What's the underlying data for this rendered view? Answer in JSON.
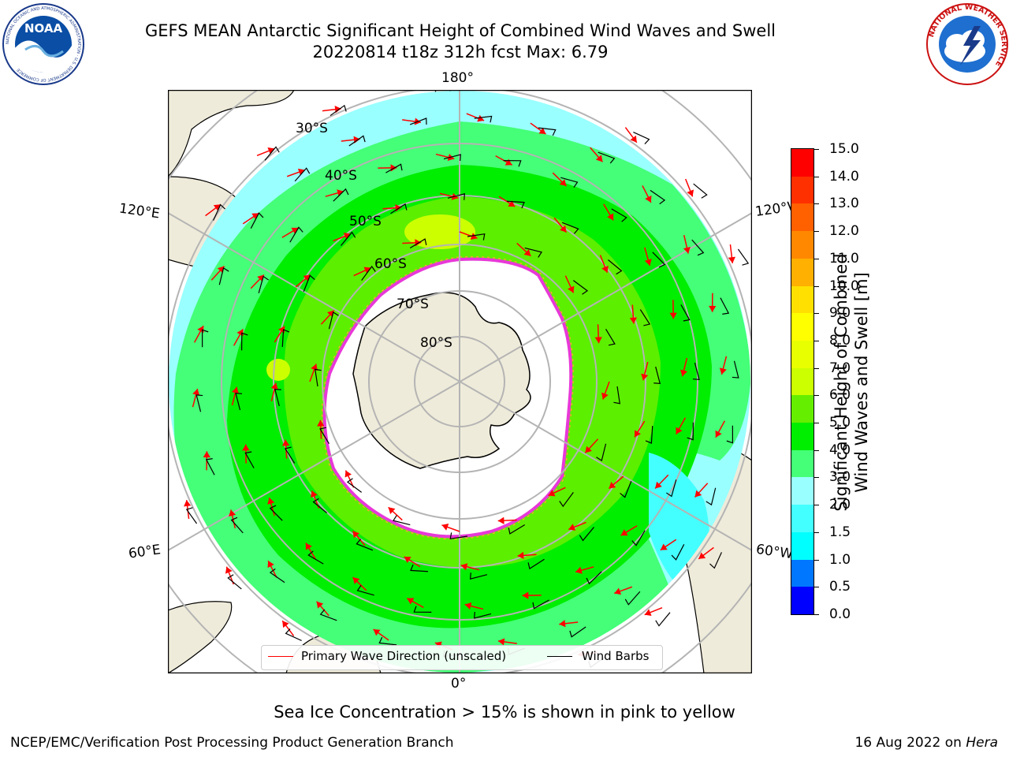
{
  "header": {
    "title_line1": "GEFS MEAN Antarctic Significant Height of Combined Wind Waves and Swell",
    "title_line2": "20220814 t18z 312h fcst   Max: 6.79"
  },
  "logos": {
    "noaa_text": "NOAA",
    "noaa_ring": "NATIONAL OCEANIC AND ATMOSPHERIC ADMINISTRATION · U.S. DEPARTMENT OF COMMERCE",
    "nws_ring": "NATIONAL WEATHER SERVICE"
  },
  "map": {
    "projection": "south-polar-stereographic",
    "lon_labels": {
      "top": "180°",
      "bottom": "0°",
      "upper_left": "120°E",
      "upper_right": "120°W",
      "lower_left": "60°E",
      "lower_right": "60°W"
    },
    "lat_labels": [
      "30°S",
      "40°S",
      "50°S",
      "60°S",
      "70°S",
      "80°S"
    ],
    "colors": {
      "land": "#efebda",
      "ice_edge": "#e838d8",
      "ice_margin": "#f7a830",
      "ice_interior": "#ffffff",
      "wave_dir": "#ff0000",
      "wind_barb": "#000000",
      "grid": "#b4b4b4"
    }
  },
  "colorbar": {
    "label_line1": "Significant Height of Combined",
    "label_line2": "Wind Waves and Swell [m]",
    "ticks": [
      "15.0",
      "14.0",
      "13.0",
      "12.0",
      "11.0",
      "10.0",
      "9.0",
      "8.0",
      "7.0",
      "6.0",
      "5.0",
      "4.0",
      "3.0",
      "2.0",
      "1.5",
      "1.0",
      "0.5",
      "0.0"
    ],
    "colors": [
      "#0000ff",
      "#0077ff",
      "#00ffff",
      "#44ffff",
      "#99ffff",
      "#44ff77",
      "#00ee00",
      "#66ee00",
      "#ccff00",
      "#e8ff00",
      "#ffff00",
      "#ffe000",
      "#ffb000",
      "#ff8800",
      "#ff6000",
      "#ff3000",
      "#ff0000"
    ]
  },
  "legend": {
    "wave_label": "Primary Wave Direction (unscaled)",
    "wind_label": "Wind Barbs"
  },
  "footer": {
    "note": "Sea Ice Concentration > 15% is shown in pink to yellow",
    "left": "NCEP/EMC/Verification Post Processing Product Generation Branch",
    "date": "16 Aug 2022 on ",
    "machine": "Hera"
  }
}
